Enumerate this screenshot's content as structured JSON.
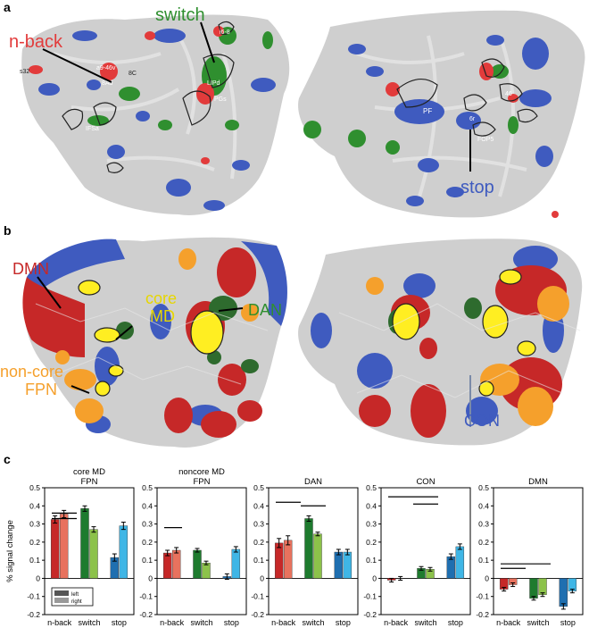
{
  "panels": {
    "a": "a",
    "b": "b",
    "c": "c"
  },
  "colors": {
    "red": "#e23b3b",
    "green": "#2f8f2f",
    "blue": "#3f5bbf",
    "yellow": "#ffee22",
    "orange": "#f5a02c",
    "darkred": "#c62828",
    "darkgreen": "#2e6b2e",
    "cortex": "#cfcfcf",
    "sulcus": "#e6e6e6"
  },
  "panel_a": {
    "labels": {
      "nback": "n-back",
      "switch": "switch",
      "stop": "stop"
    },
    "regions": [
      "s32",
      "a9-46v",
      "8Ad",
      "8C",
      "IFSa",
      "i6-8",
      "LIPd",
      "PGs",
      "PF",
      "6r",
      "FOP5",
      "46"
    ]
  },
  "panel_b": {
    "labels": {
      "dmn": "DMN",
      "core_md": "core\nMD",
      "core": "core",
      "md": "MD",
      "dan": "DAN",
      "noncore": "non-core",
      "fpn": "FPN",
      "con": "CON"
    }
  },
  "legend": {
    "left": "left",
    "right": "right"
  },
  "chart_data": [
    {
      "type": "bar",
      "title": "core MD\nFPN",
      "title_lines": [
        "core MD",
        "FPN"
      ],
      "ylabel": "% signal change",
      "ylim": [
        -0.2,
        0.5
      ],
      "yticks": [
        "0.5",
        "0.4",
        "0.3",
        "0.2",
        "0.1",
        "0",
        "-0.1",
        "-0.2"
      ],
      "categories": [
        "n-back",
        "switch",
        "stop"
      ],
      "series": [
        {
          "name": "left",
          "values": [
            0.325,
            0.385,
            0.115
          ],
          "errors": [
            0.02,
            0.015,
            0.02
          ]
        },
        {
          "name": "right",
          "values": [
            0.355,
            0.27,
            0.29
          ],
          "errors": [
            0.02,
            0.015,
            0.02
          ]
        }
      ],
      "bars": [
        [
          0.08,
          0.36,
          0.36
        ],
        [
          0.08,
          0.36,
          0.33
        ]
      ]
    },
    {
      "type": "bar",
      "title": "noncore MD\nFPN",
      "title_lines": [
        "noncore MD",
        "FPN"
      ],
      "ylim": [
        -0.2,
        0.5
      ],
      "yticks": [
        "0.5",
        "0.4",
        "0.3",
        "0.2",
        "0.1",
        "0",
        "-0.1",
        "-0.2"
      ],
      "categories": [
        "n-back",
        "switch",
        "stop"
      ],
      "series": [
        {
          "name": "left",
          "values": [
            0.14,
            0.155,
            0.01
          ],
          "errors": [
            0.015,
            0.01,
            0.015
          ]
        },
        {
          "name": "right",
          "values": [
            0.155,
            0.085,
            0.16
          ],
          "errors": [
            0.015,
            0.01,
            0.015
          ]
        }
      ],
      "bars": [
        [
          0.08,
          0.28,
          0.28
        ]
      ]
    },
    {
      "type": "bar",
      "title": "DAN",
      "title_lines": [
        "DAN"
      ],
      "ylim": [
        -0.2,
        0.5
      ],
      "yticks": [
        "0.5",
        "0.4",
        "0.3",
        "0.2",
        "0.1",
        "0",
        "-0.1",
        "-0.2"
      ],
      "categories": [
        "n-back",
        "switch",
        "stop"
      ],
      "series": [
        {
          "name": "left",
          "values": [
            0.195,
            0.33,
            0.145
          ],
          "errors": [
            0.025,
            0.015,
            0.015
          ]
        },
        {
          "name": "right",
          "values": [
            0.21,
            0.245,
            0.145
          ],
          "errors": [
            0.025,
            0.01,
            0.015
          ]
        }
      ],
      "bars": [
        [
          0.08,
          0.36,
          0.42
        ],
        [
          0.36,
          0.64,
          0.4
        ]
      ]
    },
    {
      "type": "bar",
      "title": "CON",
      "title_lines": [
        "CON"
      ],
      "ylim": [
        -0.2,
        0.5
      ],
      "yticks": [
        "0.5",
        "0.4",
        "0.3",
        "0.2",
        "0.1",
        "0",
        "-0.1",
        "-0.2"
      ],
      "categories": [
        "n-back",
        "switch",
        "stop"
      ],
      "series": [
        {
          "name": "left",
          "values": [
            -0.01,
            0.055,
            0.12
          ],
          "errors": [
            0.01,
            0.01,
            0.015
          ]
        },
        {
          "name": "right",
          "values": [
            0.0,
            0.05,
            0.175
          ],
          "errors": [
            0.01,
            0.01,
            0.015
          ]
        }
      ],
      "bars": [
        [
          0.08,
          0.64,
          0.45
        ],
        [
          0.36,
          0.64,
          0.41
        ]
      ]
    },
    {
      "type": "bar",
      "title": "DMN",
      "title_lines": [
        "DMN"
      ],
      "ylim": [
        -0.2,
        0.5
      ],
      "yticks": [
        "0.5",
        "0.4",
        "0.3",
        "0.2",
        "0.1",
        "0",
        "-0.1",
        "-0.2"
      ],
      "categories": [
        "n-back",
        "switch",
        "stop"
      ],
      "series": [
        {
          "name": "left",
          "values": [
            -0.06,
            -0.11,
            -0.155
          ],
          "errors": [
            0.01,
            0.01,
            0.015
          ]
        },
        {
          "name": "right",
          "values": [
            -0.035,
            -0.09,
            -0.07
          ],
          "errors": [
            0.01,
            0.01,
            0.01
          ]
        }
      ],
      "bars": [
        [
          0.08,
          0.64,
          0.08
        ],
        [
          0.08,
          0.36,
          0.055
        ]
      ]
    }
  ]
}
